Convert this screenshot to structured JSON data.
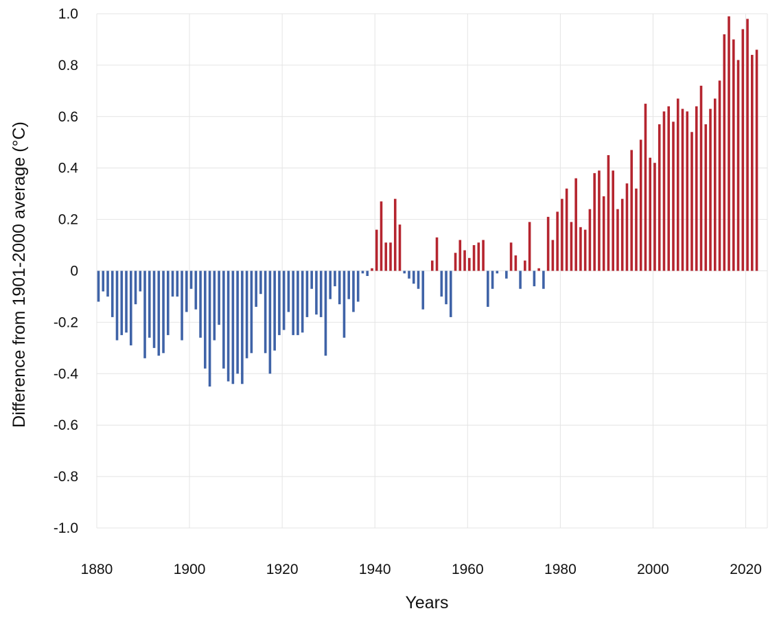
{
  "chart_data": {
    "type": "bar",
    "xlabel": "Years",
    "ylabel": "Difference from 1901-2000 average (°C)",
    "ylim": [
      -1.0,
      1.0
    ],
    "xlim": [
      1880,
      2022
    ],
    "grid": true,
    "legend": "none",
    "x_ticks": [
      1880,
      1900,
      1920,
      1940,
      1960,
      1980,
      2000,
      2020
    ],
    "y_ticks": [
      -1.0,
      -0.8,
      -0.6,
      -0.4,
      -0.2,
      0,
      0.2,
      0.4,
      0.6,
      0.8,
      1.0
    ],
    "y_tick_labels": [
      "-1.0",
      "-0.8",
      "-0.6",
      "-0.4",
      "-0.2",
      "0",
      "0.2",
      "0.4",
      "0.6",
      "0.8",
      "1.0"
    ],
    "colors": {
      "positive": "#b5252f",
      "negative": "#3f63a7"
    },
    "x": [
      1880,
      1881,
      1882,
      1883,
      1884,
      1885,
      1886,
      1887,
      1888,
      1889,
      1890,
      1891,
      1892,
      1893,
      1894,
      1895,
      1896,
      1897,
      1898,
      1899,
      1900,
      1901,
      1902,
      1903,
      1904,
      1905,
      1906,
      1907,
      1908,
      1909,
      1910,
      1911,
      1912,
      1913,
      1914,
      1915,
      1916,
      1917,
      1918,
      1919,
      1920,
      1921,
      1922,
      1923,
      1924,
      1925,
      1926,
      1927,
      1928,
      1929,
      1930,
      1931,
      1932,
      1933,
      1934,
      1935,
      1936,
      1937,
      1938,
      1939,
      1940,
      1941,
      1942,
      1943,
      1944,
      1945,
      1946,
      1947,
      1948,
      1949,
      1950,
      1951,
      1952,
      1953,
      1954,
      1955,
      1956,
      1957,
      1958,
      1959,
      1960,
      1961,
      1962,
      1963,
      1964,
      1965,
      1966,
      1967,
      1968,
      1969,
      1970,
      1971,
      1972,
      1973,
      1974,
      1975,
      1976,
      1977,
      1978,
      1979,
      1980,
      1981,
      1982,
      1983,
      1984,
      1985,
      1986,
      1987,
      1988,
      1989,
      1990,
      1991,
      1992,
      1993,
      1994,
      1995,
      1996,
      1997,
      1998,
      1999,
      2000,
      2001,
      2002,
      2003,
      2004,
      2005,
      2006,
      2007,
      2008,
      2009,
      2010,
      2011,
      2012,
      2013,
      2014,
      2015,
      2016,
      2017,
      2018,
      2019,
      2020,
      2021,
      2022
    ],
    "values": [
      -0.12,
      -0.08,
      -0.1,
      -0.18,
      -0.27,
      -0.25,
      -0.24,
      -0.29,
      -0.13,
      -0.08,
      -0.34,
      -0.26,
      -0.3,
      -0.33,
      -0.32,
      -0.25,
      -0.1,
      -0.1,
      -0.27,
      -0.16,
      -0.07,
      -0.15,
      -0.26,
      -0.38,
      -0.45,
      -0.27,
      -0.21,
      -0.38,
      -0.43,
      -0.44,
      -0.4,
      -0.44,
      -0.34,
      -0.32,
      -0.14,
      -0.09,
      -0.32,
      -0.4,
      -0.31,
      -0.25,
      -0.23,
      -0.16,
      -0.25,
      -0.25,
      -0.24,
      -0.18,
      -0.07,
      -0.17,
      -0.18,
      -0.33,
      -0.11,
      -0.06,
      -0.13,
      -0.26,
      -0.11,
      -0.16,
      -0.12,
      -0.01,
      -0.02,
      0.01,
      0.16,
      0.27,
      0.11,
      0.11,
      0.28,
      0.18,
      -0.01,
      -0.03,
      -0.05,
      -0.07,
      -0.15,
      0.0,
      0.04,
      0.13,
      -0.1,
      -0.13,
      -0.18,
      0.07,
      0.12,
      0.08,
      0.05,
      0.1,
      0.11,
      0.12,
      -0.14,
      -0.07,
      -0.01,
      0.0,
      -0.03,
      0.11,
      0.06,
      -0.07,
      0.04,
      0.19,
      -0.06,
      0.01,
      -0.07,
      0.21,
      0.12,
      0.23,
      0.28,
      0.32,
      0.19,
      0.36,
      0.17,
      0.16,
      0.24,
      0.38,
      0.39,
      0.29,
      0.45,
      0.39,
      0.24,
      0.28,
      0.34,
      0.47,
      0.32,
      0.51,
      0.65,
      0.44,
      0.42,
      0.57,
      0.62,
      0.64,
      0.58,
      0.67,
      0.63,
      0.62,
      0.54,
      0.64,
      0.72,
      0.57,
      0.63,
      0.67,
      0.74,
      0.92,
      0.99,
      0.9,
      0.82,
      0.94,
      0.98,
      0.84,
      0.86
    ]
  }
}
